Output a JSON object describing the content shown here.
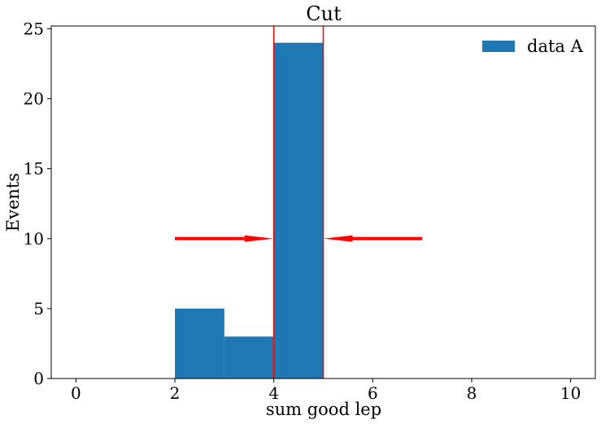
{
  "chart_data": {
    "type": "bar",
    "title": "Cut",
    "xlabel": "sum good lep",
    "ylabel": "Events",
    "xlim": [
      -0.5,
      10.5
    ],
    "ylim": [
      0,
      25.2
    ],
    "xticks": [
      0,
      2,
      4,
      6,
      8,
      10
    ],
    "yticks": [
      0,
      5,
      10,
      15,
      20,
      25
    ],
    "grid": false,
    "legend_position": "top-right",
    "series": [
      {
        "name": "data A",
        "color": "#1f77b4",
        "bins": [
          {
            "x0": 2,
            "x1": 3,
            "value": 5
          },
          {
            "x0": 3,
            "x1": 4,
            "value": 3
          },
          {
            "x0": 4,
            "x1": 5,
            "value": 24
          }
        ]
      }
    ],
    "annotations": {
      "color": "#ff0000",
      "cut_lines_x": [
        4,
        5
      ],
      "arrows": [
        {
          "from": [
            2,
            10
          ],
          "to": [
            4,
            10
          ]
        },
        {
          "from": [
            7,
            10
          ],
          "to": [
            5,
            10
          ]
        }
      ]
    }
  }
}
